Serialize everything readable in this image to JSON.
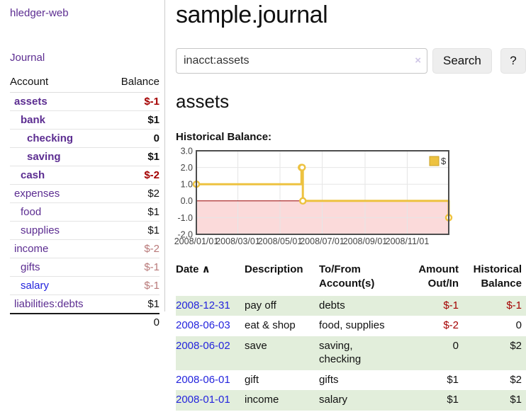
{
  "app": {
    "brand": "hledger-web"
  },
  "colors": {
    "purple": "#5c2d91",
    "blue": "#2424dd",
    "neg_strong": "#a40000",
    "neg_soft": "#b87878",
    "row_green": "#e2eedb",
    "series_yellow": "#edc240",
    "zero_line": "#990000",
    "neg_region": "#fbdada",
    "chart_border": "#4d4d4d",
    "btn_bg": "#eeeeee"
  },
  "sidebar": {
    "nav": [
      {
        "label": "Journal"
      }
    ],
    "accounts_table": {
      "headers": [
        "Account",
        "Balance"
      ],
      "rows": [
        {
          "account": "assets",
          "depth": 0,
          "bold": true,
          "link_color": "purple",
          "balance": "$-1",
          "balance_class": "neg-strong"
        },
        {
          "account": "bank",
          "depth": 1,
          "bold": true,
          "link_color": "purple",
          "balance": "$1",
          "balance_class": "pos"
        },
        {
          "account": "checking",
          "depth": 2,
          "bold": true,
          "link_color": "purple",
          "balance": "0",
          "balance_class": "pos"
        },
        {
          "account": "saving",
          "depth": 2,
          "bold": true,
          "link_color": "purple",
          "balance": "$1",
          "balance_class": "pos"
        },
        {
          "account": "cash",
          "depth": 1,
          "bold": true,
          "link_color": "purple",
          "balance": "$-2",
          "balance_class": "neg-strong"
        },
        {
          "account": "expenses",
          "depth": 0,
          "bold": false,
          "link_color": "purple",
          "balance": "$2",
          "balance_class": "pos"
        },
        {
          "account": "food",
          "depth": 1,
          "bold": false,
          "link_color": "purple",
          "balance": "$1",
          "balance_class": "pos"
        },
        {
          "account": "supplies",
          "depth": 1,
          "bold": false,
          "link_color": "purple",
          "balance": "$1",
          "balance_class": "pos"
        },
        {
          "account": "income",
          "depth": 0,
          "bold": false,
          "link_color": "purple",
          "balance": "$-2",
          "balance_class": "neg-soft"
        },
        {
          "account": "gifts",
          "depth": 1,
          "bold": false,
          "link_color": "purple",
          "balance": "$-1",
          "balance_class": "neg-soft"
        },
        {
          "account": "salary",
          "depth": 1,
          "bold": false,
          "link_color": "blue",
          "balance": "$-1",
          "balance_class": "neg-soft"
        },
        {
          "account": "liabilities:debts",
          "depth": 0,
          "bold": false,
          "link_color": "purple",
          "balance": "$1",
          "balance_class": "pos"
        }
      ],
      "total": "0"
    }
  },
  "main": {
    "title": "sample.journal",
    "search": {
      "value": "inacct:assets",
      "clear_icon": "×",
      "search_label": "Search",
      "help_label": "?"
    },
    "account_heading": "assets",
    "chart_label": "Historical Balance:",
    "register": {
      "headers": [
        {
          "key": "date",
          "lines": [
            "Date"
          ],
          "align": "left",
          "sortable": true,
          "sort_indicator": "∧"
        },
        {
          "key": "description",
          "lines": [
            "Description"
          ],
          "align": "left",
          "sortable": false
        },
        {
          "key": "accounts",
          "lines": [
            "To/From",
            "Account(s)"
          ],
          "align": "left",
          "sortable": false
        },
        {
          "key": "amount",
          "lines": [
            "Amount",
            "Out/In"
          ],
          "align": "right",
          "sortable": false
        },
        {
          "key": "balance",
          "lines": [
            "Historical",
            "Balance"
          ],
          "align": "right",
          "sortable": false
        }
      ],
      "rows": [
        {
          "date": "2008-12-31",
          "description": "pay off",
          "accounts": "debts",
          "amount": "$-1",
          "amount_negative": true,
          "balance": "$-1",
          "balance_negative": true,
          "shaded": true
        },
        {
          "date": "2008-06-03",
          "description": "eat & shop",
          "accounts": "food, supplies",
          "amount": "$-2",
          "amount_negative": true,
          "balance": "0",
          "balance_negative": false,
          "shaded": false
        },
        {
          "date": "2008-06-02",
          "description": "save",
          "accounts": "saving,\nchecking",
          "amount": "0",
          "amount_negative": false,
          "balance": "$2",
          "balance_negative": false,
          "shaded": true
        },
        {
          "date": "2008-06-01",
          "description": "gift",
          "accounts": "gifts",
          "amount": "$1",
          "amount_negative": false,
          "balance": "$2",
          "balance_negative": false,
          "shaded": false
        },
        {
          "date": "2008-01-01",
          "description": "income",
          "accounts": "salary",
          "amount": "$1",
          "amount_negative": false,
          "balance": "$1",
          "balance_negative": false,
          "shaded": true
        }
      ]
    }
  },
  "chart_data": {
    "type": "line",
    "title": "Historical Balance",
    "style": "step",
    "legend": {
      "label": "$",
      "position": "top-right"
    },
    "series": [
      {
        "name": "$",
        "color": "#edc240",
        "points": [
          {
            "date": "2008-01-01",
            "day": 0,
            "value": 1
          },
          {
            "date": "2008-06-01",
            "day": 152,
            "value": 2
          },
          {
            "date": "2008-06-02",
            "day": 153,
            "value": 2
          },
          {
            "date": "2008-06-03",
            "day": 154,
            "value": 0
          },
          {
            "date": "2008-12-31",
            "day": 365,
            "value": -1
          }
        ]
      }
    ],
    "x_ticks": [
      {
        "label": "2008/01/01",
        "day": 0
      },
      {
        "label": "2008/03/01",
        "day": 60
      },
      {
        "label": "2008/05/01",
        "day": 121
      },
      {
        "label": "2008/07/01",
        "day": 182
      },
      {
        "label": "2008/09/01",
        "day": 244
      },
      {
        "label": "2008/11/01",
        "day": 305
      }
    ],
    "y_ticks": [
      3.0,
      2.0,
      1.0,
      0.0,
      -1.0,
      -2.0
    ],
    "ylim": [
      -2,
      3
    ],
    "xlim_days": [
      0,
      365
    ],
    "grid": true,
    "negative_region": true
  }
}
